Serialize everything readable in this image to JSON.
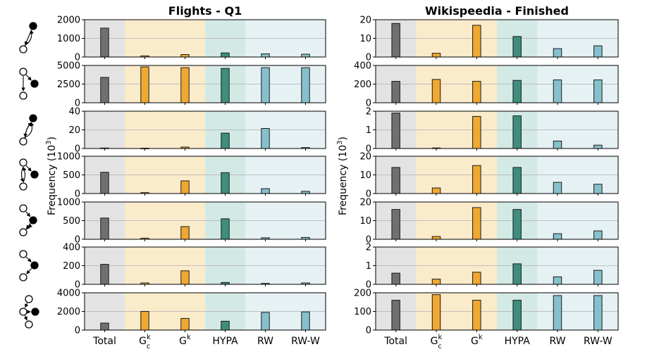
{
  "chart_data": [
    {
      "type": "bar",
      "title": "Flights - Q1",
      "ylabel": "Frequency (10",
      "ylabel_sup": "3",
      "ylabel_close": ")",
      "categories": [
        "Total",
        "Gck",
        "Gk",
        "HYPA",
        "RW",
        "RW-W"
      ],
      "category_labels": [
        {
          "base": "Total"
        },
        {
          "base": "G",
          "sup": "k",
          "sub": "c"
        },
        {
          "base": "G",
          "sup": "k"
        },
        {
          "base": "HYPA"
        },
        {
          "base": "RW"
        },
        {
          "base": "RW-W"
        }
      ],
      "bar_colors": [
        "#707070",
        "#F0A830",
        "#F0A830",
        "#3E8E7E",
        "#86C0CC",
        "#86C0CC"
      ],
      "band_colors": [
        "#E3E3E3",
        "#FAEBCB",
        "#FAEBCB",
        "#D3E9E5",
        "#E6F1F4",
        "#E6F1F4"
      ],
      "panels": [
        {
          "motif": "m1",
          "ylim": [
            0,
            2000
          ],
          "yticks": [
            "0",
            "1000",
            "2000"
          ],
          "values": [
            1550,
            60,
            130,
            220,
            170,
            150
          ]
        },
        {
          "motif": "m2",
          "ylim": [
            0,
            5000
          ],
          "yticks": [
            "0",
            "2500",
            "5000"
          ],
          "values": [
            3400,
            4800,
            4700,
            4600,
            4700,
            4700
          ]
        },
        {
          "motif": "m3",
          "ylim": [
            0,
            40
          ],
          "yticks": [
            "0",
            "20",
            "40"
          ],
          "values": [
            0.5,
            0.3,
            1.5,
            16.5,
            21.5,
            1.0
          ]
        },
        {
          "motif": "m4",
          "ylim": [
            0,
            1000
          ],
          "yticks": [
            "0",
            "500",
            "1000"
          ],
          "values": [
            570,
            25,
            340,
            560,
            130,
            60
          ]
        },
        {
          "motif": "m5",
          "ylim": [
            0,
            1000
          ],
          "yticks": [
            "0",
            "500",
            "1000"
          ],
          "values": [
            570,
            30,
            340,
            550,
            40,
            50
          ]
        },
        {
          "motif": "m6",
          "ylim": [
            0,
            400
          ],
          "yticks": [
            "0",
            "200",
            "400"
          ],
          "values": [
            215,
            15,
            145,
            20,
            10,
            15
          ]
        },
        {
          "motif": "m7",
          "ylim": [
            0,
            4000
          ],
          "yticks": [
            "0",
            "2000",
            "4000"
          ],
          "values": [
            750,
            2000,
            1250,
            950,
            1900,
            1950
          ]
        }
      ]
    },
    {
      "type": "bar",
      "title": "Wikispeedia - Finished",
      "ylabel": "Frequency (10",
      "ylabel_sup": "3",
      "ylabel_close": ")",
      "categories": [
        "Total",
        "Gck",
        "Gk",
        "HYPA",
        "RW",
        "RW-W"
      ],
      "category_labels": [
        {
          "base": "Total"
        },
        {
          "base": "G",
          "sup": "k",
          "sub": "c"
        },
        {
          "base": "G",
          "sup": "k"
        },
        {
          "base": "HYPA"
        },
        {
          "base": "RW"
        },
        {
          "base": "RW-W"
        }
      ],
      "bar_colors": [
        "#707070",
        "#F0A830",
        "#F0A830",
        "#3E8E7E",
        "#86C0CC",
        "#86C0CC"
      ],
      "band_colors": [
        "#E3E3E3",
        "#FAEBCB",
        "#FAEBCB",
        "#D3E9E5",
        "#E6F1F4",
        "#E6F1F4"
      ],
      "panels": [
        {
          "ylim": [
            0,
            20
          ],
          "yticks": [
            "0",
            "10",
            "20"
          ],
          "values": [
            18,
            2,
            17,
            11,
            4.5,
            6
          ]
        },
        {
          "ylim": [
            0,
            400
          ],
          "yticks": [
            "0",
            "200",
            "400"
          ],
          "values": [
            230,
            250,
            230,
            240,
            245,
            245
          ]
        },
        {
          "ylim": [
            0,
            2
          ],
          "yticks": [
            "0",
            "1",
            "2"
          ],
          "values": [
            1.9,
            0.03,
            1.72,
            1.75,
            0.4,
            0.18
          ]
        },
        {
          "ylim": [
            0,
            20
          ],
          "yticks": [
            "0",
            "10",
            "20"
          ],
          "values": [
            14,
            3,
            15,
            14,
            6,
            5
          ]
        },
        {
          "ylim": [
            0,
            20
          ],
          "yticks": [
            "0",
            "10",
            "20"
          ],
          "values": [
            16,
            1.5,
            17,
            16,
            3,
            4.5
          ]
        },
        {
          "ylim": [
            0,
            2
          ],
          "yticks": [
            "0",
            "1",
            "2"
          ],
          "values": [
            0.6,
            0.28,
            0.65,
            1.1,
            0.4,
            0.75
          ]
        },
        {
          "ylim": [
            0,
            200
          ],
          "yticks": [
            "0",
            "100",
            "200"
          ],
          "values": [
            160,
            190,
            160,
            160,
            185,
            185
          ]
        }
      ]
    }
  ]
}
